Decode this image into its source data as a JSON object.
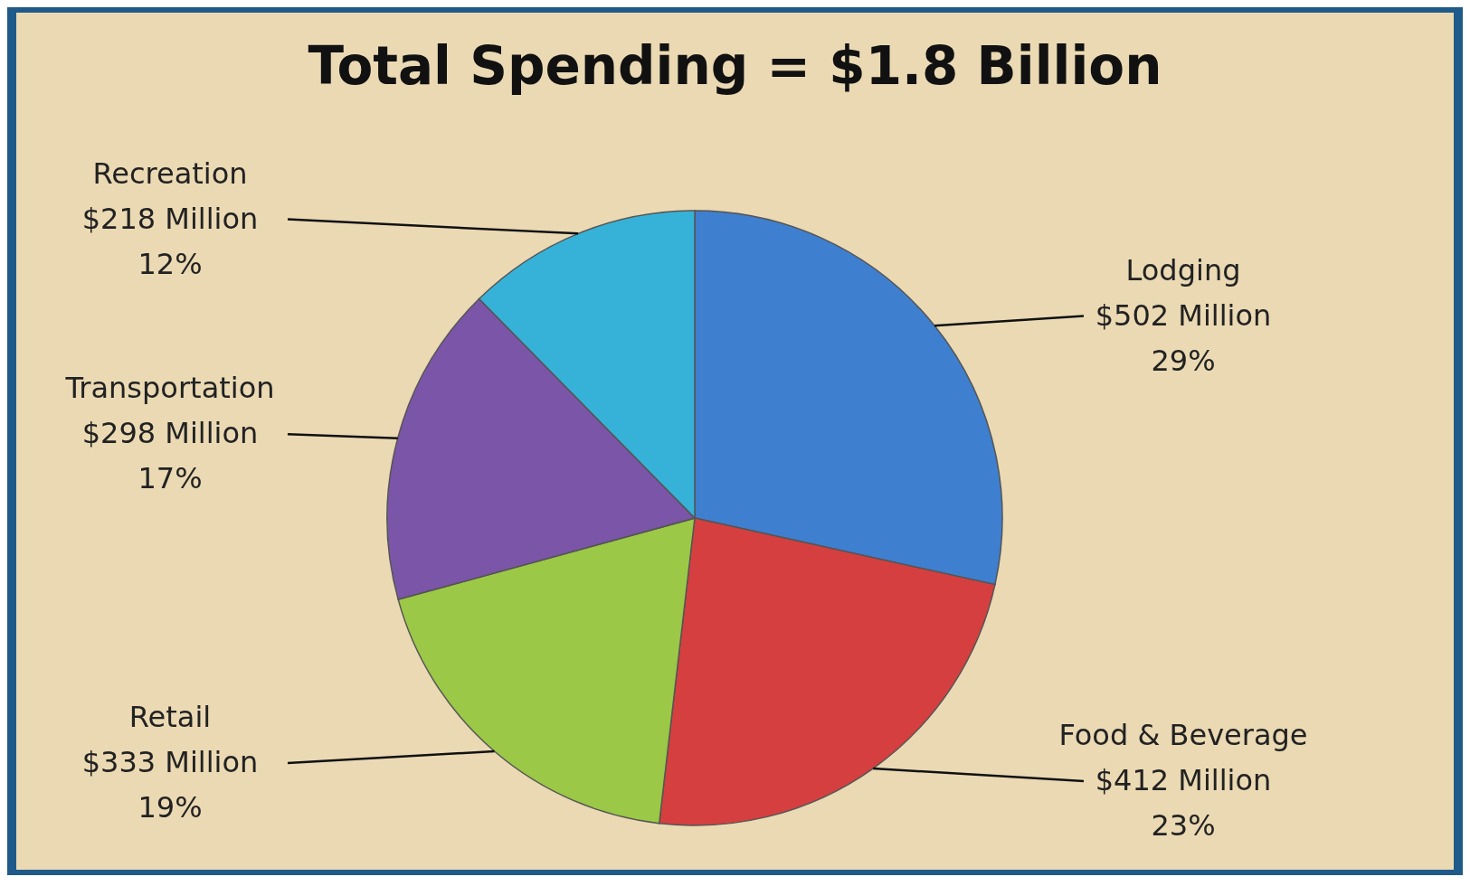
{
  "chart_data": {
    "type": "pie",
    "title": "Total Spending = $1.8 Billion",
    "categories": [
      "Lodging",
      "Food & Beverage",
      "Retail",
      "Transportation",
      "Recreation"
    ],
    "values": [
      502,
      412,
      333,
      298,
      218
    ],
    "colors": [
      "#3f7fcf",
      "#d63f3f",
      "#9bc846",
      "#7b55a8",
      "#36b2d8"
    ],
    "value_labels": [
      "$502 Million\n29%",
      "$412 Million\n23%",
      "$333 Million\n19%",
      "$298 Million\n17%",
      "$218 Million\n12%"
    ]
  }
}
